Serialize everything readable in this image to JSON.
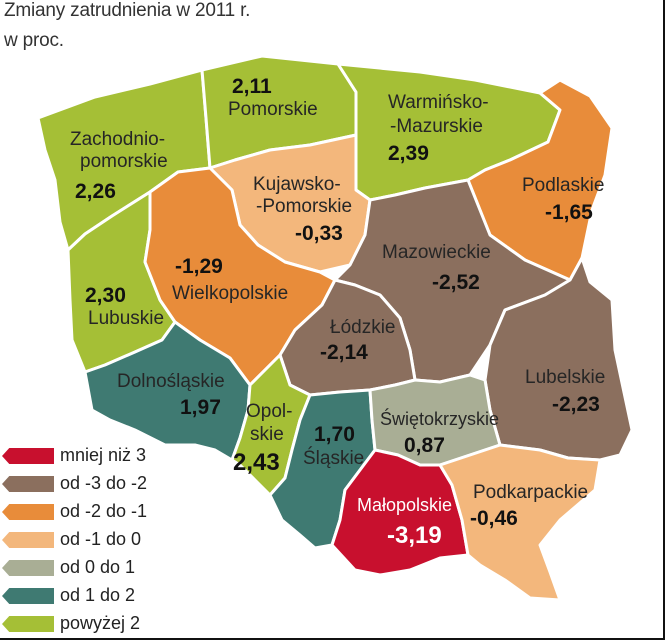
{
  "title_line1": "Zmiany zatrudnienia w 2011 r.",
  "title_line2": "w proc.",
  "colors": {
    "c1": "#c8102e",
    "c2": "#8b6f5e",
    "c3": "#e88c3a",
    "c4": "#f3b77c",
    "c5": "#a9ae95",
    "c6": "#3f7a72",
    "c7": "#a5bf36",
    "border": "#ffffff"
  },
  "legend": [
    {
      "label": "mniej niż 3",
      "color": "#c8102e"
    },
    {
      "label": "od -3 do -2",
      "color": "#8b6f5e"
    },
    {
      "label": "od -2 do -1",
      "color": "#e88c3a"
    },
    {
      "label": "od -1 do 0",
      "color": "#f3b77c"
    },
    {
      "label": "od 0 do 1",
      "color": "#a9ae95"
    },
    {
      "label": "od 1 do 2",
      "color": "#3f7a72"
    },
    {
      "label": "powyżej 2",
      "color": "#a5bf36"
    }
  ],
  "regions": {
    "zachodniopomorskie": {
      "name1": "Zachodnio-",
      "name2": "pomorskie",
      "value": "2,26"
    },
    "pomorskie": {
      "name1": "Pomorskie",
      "value": "2,11"
    },
    "warminsko": {
      "name1": "Warmińsko-",
      "name2": "-Mazurskie",
      "value": "2,39"
    },
    "podlaskie": {
      "name1": "Podlaskie",
      "value": "-1,65"
    },
    "kujawsko": {
      "name1": "Kujawsko-",
      "name2": "-Pomorskie",
      "value": "-0,33"
    },
    "lubuskie": {
      "name1": "Lubuskie",
      "value": "2,30"
    },
    "wielkopolskie": {
      "name1": "Wielkopolskie",
      "value": "-1,29"
    },
    "mazowieckie": {
      "name1": "Mazowieckie",
      "value": "-2,52"
    },
    "lodzkie": {
      "name1": "Łódzkie",
      "value": "-2,14"
    },
    "lubelskie": {
      "name1": "Lubelskie",
      "value": "-2,23"
    },
    "dolnoslaskie": {
      "name1": "Dolnośląskie",
      "value": "1,97"
    },
    "opolskie": {
      "name1": "Opol-",
      "name2": "skie",
      "value": "2,43"
    },
    "slaskie": {
      "name1": "Śląskie",
      "value": "1,70"
    },
    "swietokrzyskie": {
      "name1": "Świętokrzyskie",
      "value": "0,87"
    },
    "malopolskie": {
      "name1": "Małopolskie",
      "value": "-3,19"
    },
    "podkarpackie": {
      "name1": "Podkarpackie",
      "value": "-0,46"
    }
  }
}
